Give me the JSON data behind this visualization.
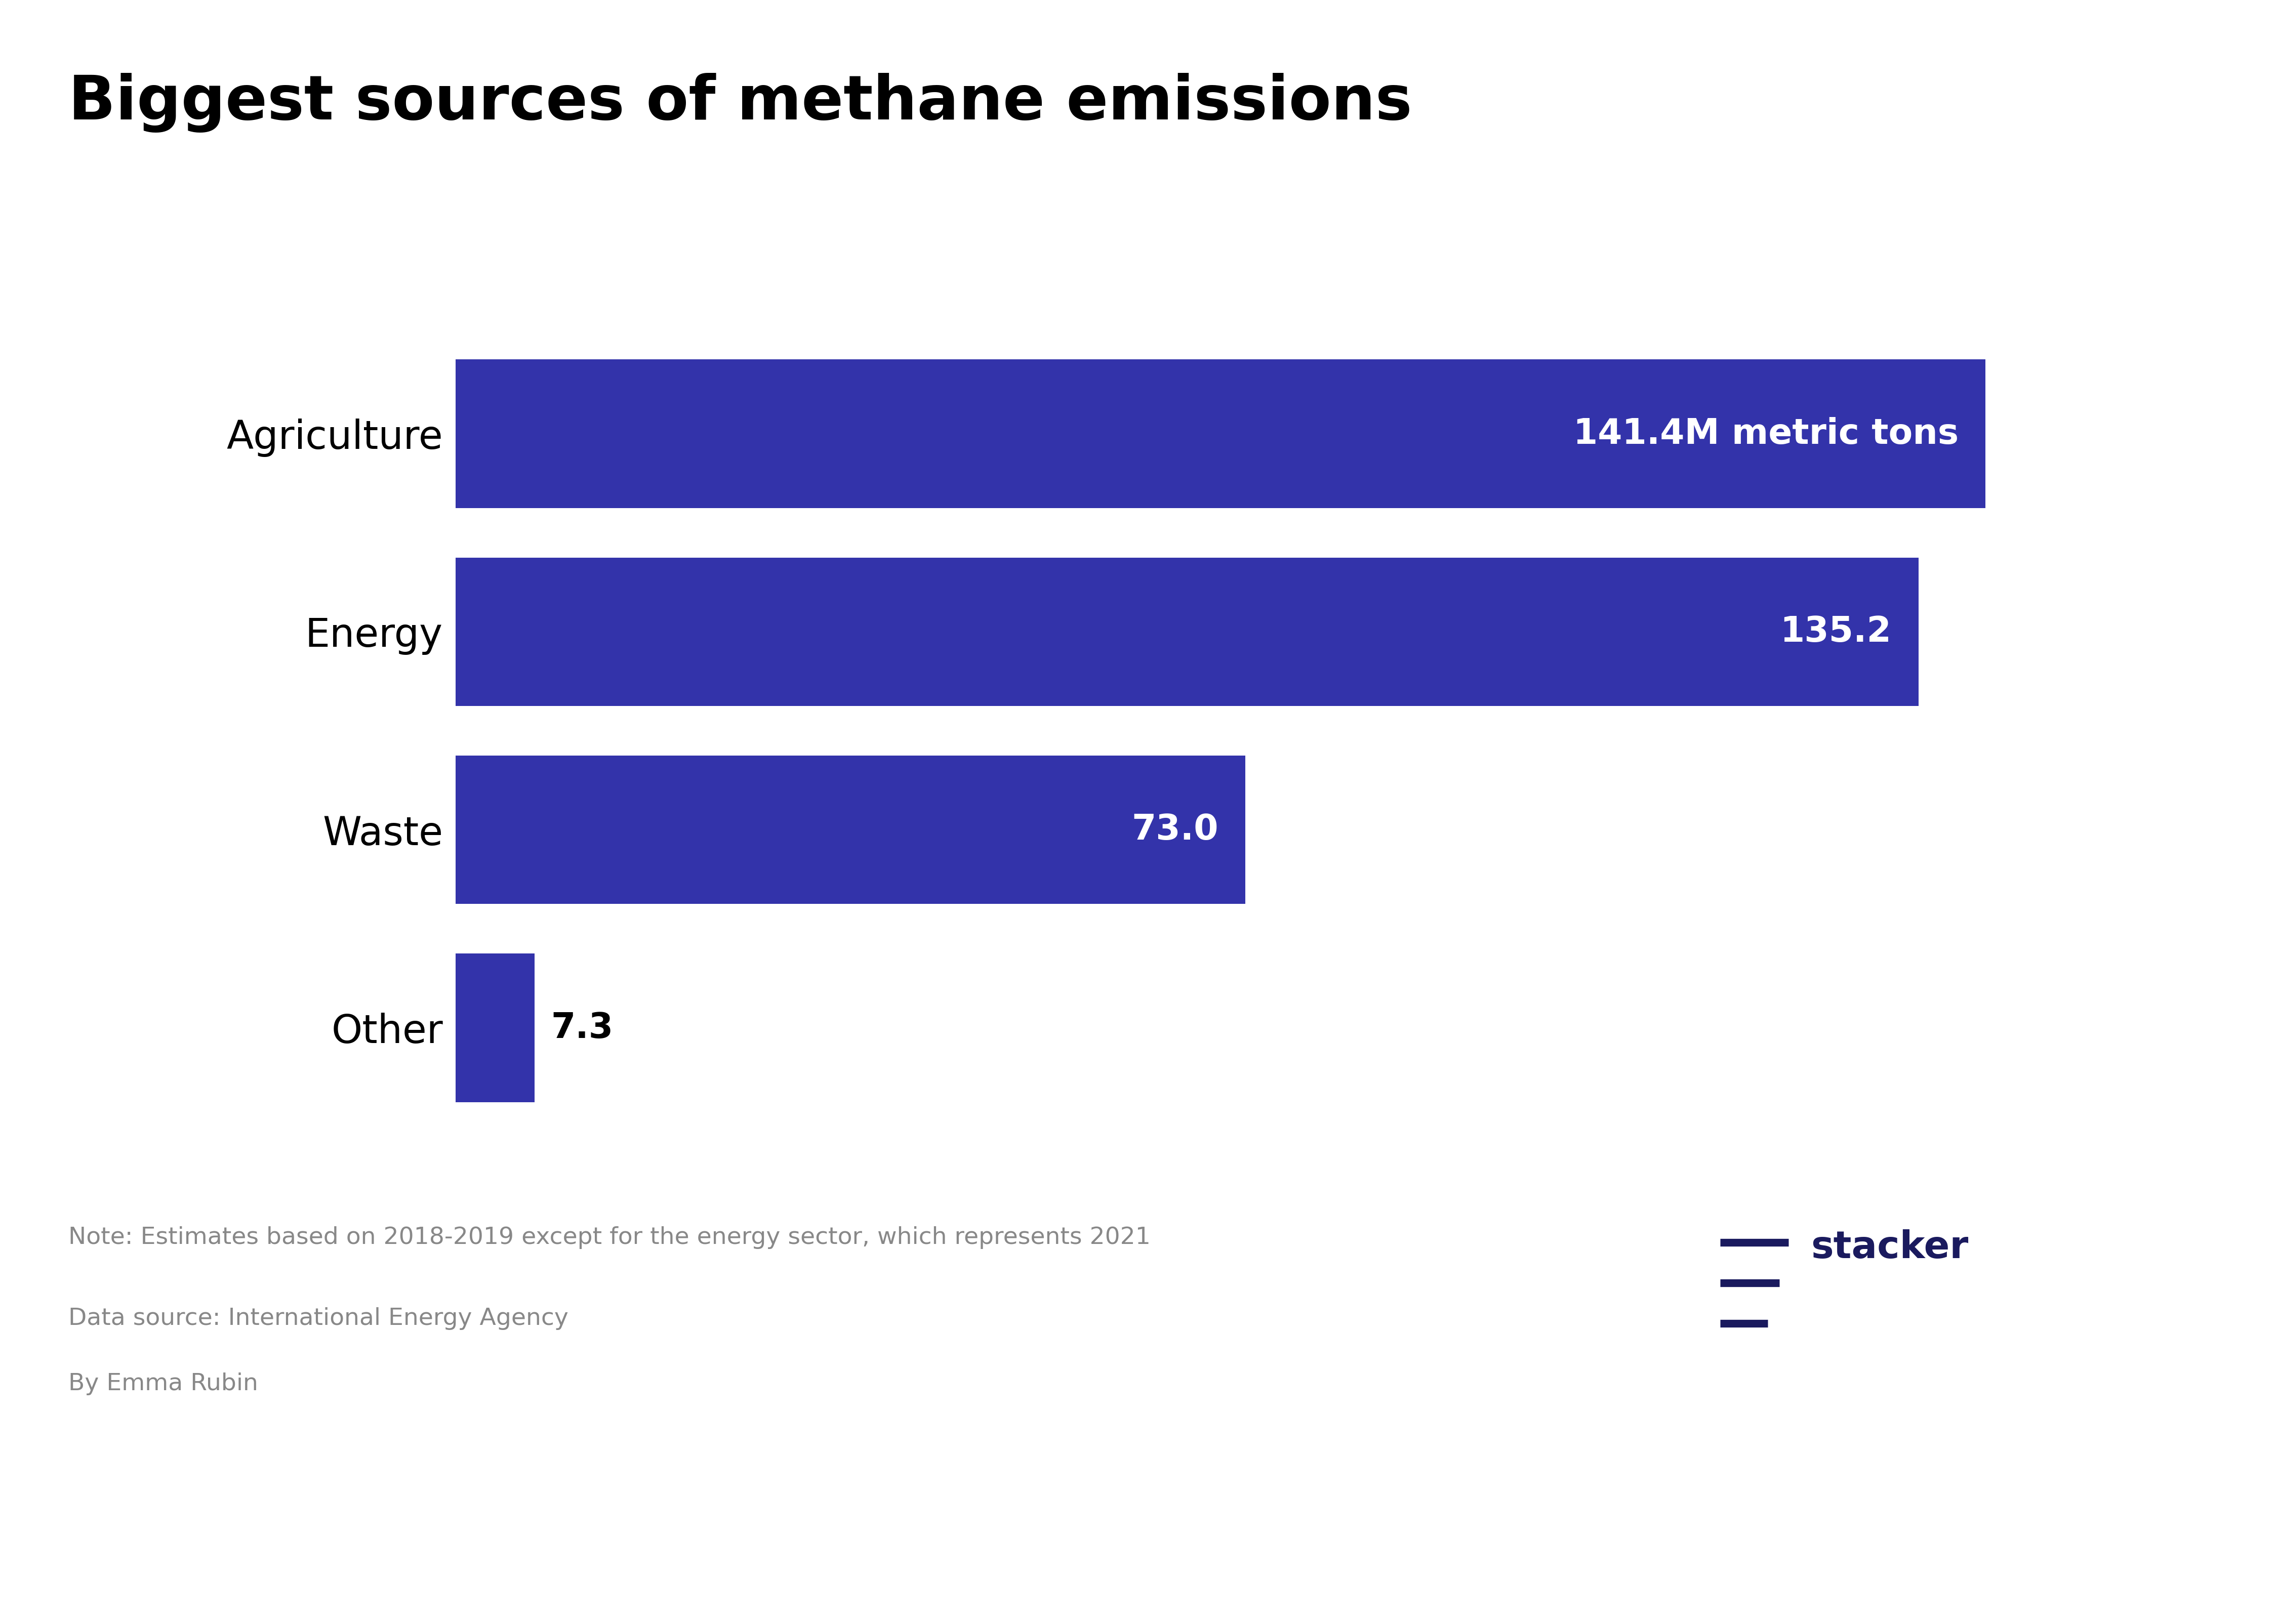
{
  "title": "Biggest sources of methane emissions",
  "categories": [
    "Agriculture",
    "Energy",
    "Waste",
    "Other"
  ],
  "values": [
    141.4,
    135.2,
    73.0,
    7.3
  ],
  "labels": [
    "141.4M metric tons",
    "135.2",
    "73.0",
    "7.3"
  ],
  "bar_color": "#3333AA",
  "background_color": "#ffffff",
  "title_fontsize": 88,
  "label_fontsize": 50,
  "category_fontsize": 56,
  "note_text": "Note: Estimates based on 2018-2019 except for the energy sector, which represents 2021",
  "source_text": "Data source: International Energy Agency",
  "author_text": "By Emma Rubin",
  "note_fontsize": 34,
  "footer_color": "#888888",
  "stacker_color": "#1a1a5e",
  "xlim": [
    0,
    160
  ]
}
